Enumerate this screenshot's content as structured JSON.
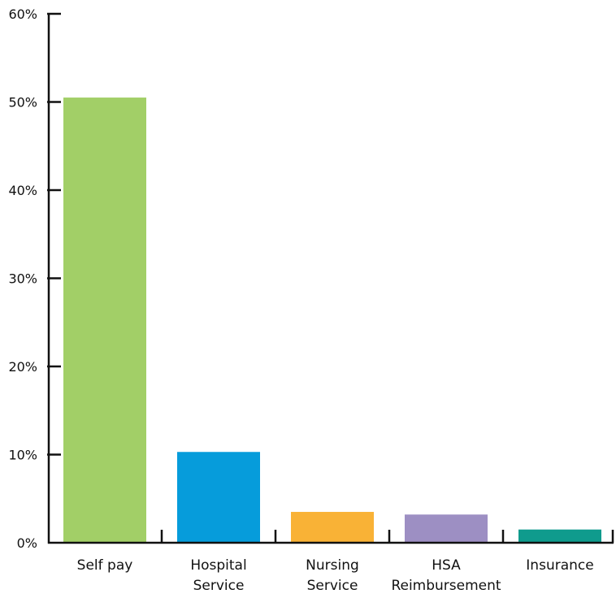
{
  "chart_data": {
    "type": "bar",
    "title": "",
    "xlabel": "",
    "ylabel": "",
    "ylim": [
      0,
      60
    ],
    "ytick_values": [
      0,
      10,
      20,
      30,
      40,
      50,
      60
    ],
    "ytick_labels": [
      "0%",
      "10%",
      "20%",
      "30%",
      "40%",
      "50%",
      "60%"
    ],
    "categories": [
      [
        "Self pay"
      ],
      [
        "Hospital",
        "Service"
      ],
      [
        "Nursing",
        "Service"
      ],
      [
        "HSA",
        "Reimbursement"
      ],
      [
        "Insurance"
      ]
    ],
    "values": [
      50.5,
      10.3,
      3.5,
      3.2,
      1.5
    ],
    "colors": [
      "#A2CF67",
      "#069CDB",
      "#F9B236",
      "#9D8FC3",
      "#0F9B8D"
    ],
    "grid": false,
    "legend": "none"
  }
}
